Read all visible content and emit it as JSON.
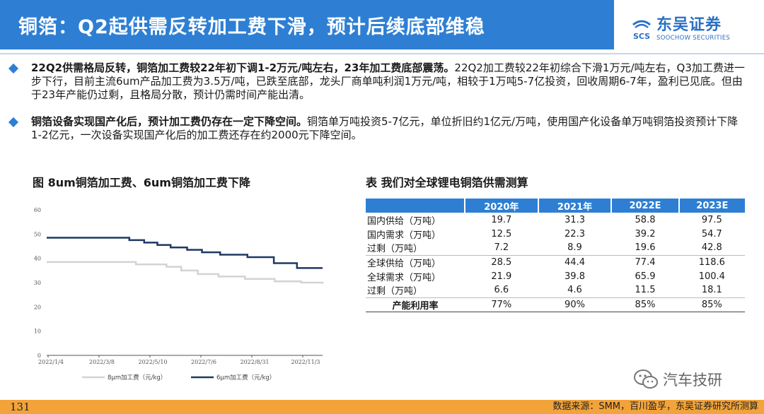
{
  "header": {
    "title": "铜箔：Q2起供需反转加工费下滑，预计后续底部维稳",
    "logo_cn": "东吴证券",
    "logo_en": "SOOCHOW SECURITIES",
    "logo_mark": "SCS"
  },
  "bullets": [
    {
      "bold": "22Q2供需格局反转，铜箔加工费较22年初下调1-2万元/吨左右，23年加工费底部震荡。",
      "text": "22Q2加工费较22年初综合下滑1万元/吨左右，Q3加工费进一步下行，目前主流6um产品加工费为3.5万/吨，已跌至底部，龙头厂商单吨利润1万元/吨，相较于1万吨5-7亿投资，回收周期6-7年，盈利已见底。但由于23年产能仍过剩，且格局分散，预计仍需时间产能出清。"
    },
    {
      "bold": "铜箔设备实现国产化后，预计加工费仍存在一定下降空间。",
      "text": "铜箔单万吨投资5-7亿元，单位折旧约1亿元/万吨，使用国产化设备单万吨铜箔投资预计下降1-2亿元，一次设备实现国产化后的加工费还存在约2000元下降空间。"
    }
  ],
  "figure_title": "图 8um铜箔加工费、6um铜箔加工费下降",
  "table_title": "表 我们对全球锂电铜箔供需测算",
  "chart_data": {
    "type": "line",
    "ylim": [
      0,
      60
    ],
    "yticks": [
      "0",
      "10",
      "20",
      "30",
      "40",
      "50",
      "60"
    ],
    "xticks": [
      "2022/1/4",
      "2022/3/8",
      "2022/5/10",
      "2022/7/6",
      "2022/8/31",
      "2022/11/3"
    ],
    "x_range": [
      0,
      334
    ],
    "series": [
      {
        "name": "8μm加工费（元/kg）",
        "color": "#d3d3d3",
        "x": [
          0,
          45,
          64,
          90,
          108,
          128,
          145,
          163,
          183,
          208,
          240,
          276,
          308,
          334
        ],
        "y": [
          38.5,
          38.5,
          38.5,
          38.5,
          37.5,
          37.5,
          36.5,
          35,
          33.5,
          32.5,
          31.5,
          30.5,
          30,
          29.5
        ]
      },
      {
        "name": "6μm加工费（元/kg）",
        "color": "#1f3864",
        "x": [
          0,
          40,
          58,
          82,
          100,
          118,
          134,
          150,
          170,
          188,
          210,
          243,
          275,
          303,
          334
        ],
        "y": [
          48.5,
          48.5,
          48.5,
          48.5,
          47.5,
          46.5,
          45.5,
          44.5,
          43.5,
          42.5,
          41.5,
          40.5,
          38,
          36,
          36
        ]
      }
    ]
  },
  "table": {
    "headers": [
      "",
      "2020年",
      "2021年",
      "2022E",
      "2023E"
    ],
    "rows": [
      [
        "国内供给（万吨）",
        "19.7",
        "31.3",
        "58.8",
        "97.5"
      ],
      [
        "国内需求（万吨）",
        "12.5",
        "22.3",
        "39.2",
        "54.7"
      ],
      [
        "过剩（万吨）",
        "7.2",
        "8.9",
        "19.6",
        "42.8"
      ],
      [
        "全球供给（万吨）",
        "28.5",
        "44.4",
        "77.4",
        "118.6"
      ],
      [
        "全球需求（万吨）",
        "21.9",
        "39.8",
        "65.9",
        "100.4"
      ],
      [
        "过剩（万吨）",
        "6.6",
        "4.6",
        "11.5",
        "18.1"
      ],
      [
        "产能利用率",
        "77%",
        "90%",
        "85%",
        "85%"
      ]
    ]
  },
  "watermark": "汽车技研",
  "footer": {
    "page_number": "131",
    "source": "数据来源：SMM，百川盈孚，东吴证券研究所测算"
  },
  "colors": {
    "title_bar": "#2e7fd3",
    "footer_bar": "#f2a33a",
    "table_header": "#2e7fd3"
  }
}
